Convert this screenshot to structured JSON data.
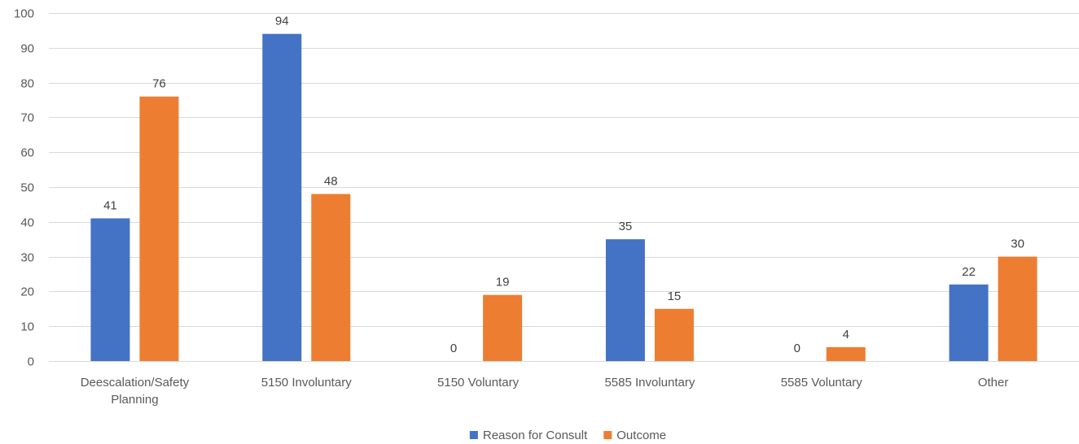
{
  "chart_data": {
    "type": "bar",
    "title": "",
    "xlabel": "",
    "ylabel": "",
    "categories": [
      [
        "Deescalation/Safety",
        "Planning"
      ],
      [
        "5150 Involuntary"
      ],
      [
        "5150 Voluntary"
      ],
      [
        "5585 Involuntary"
      ],
      [
        "5585 Voluntary"
      ],
      [
        "Other"
      ]
    ],
    "series": [
      {
        "name": "Reason for Consult",
        "color": "#4472c4",
        "values": [
          41,
          94,
          0,
          35,
          0,
          22
        ]
      },
      {
        "name": "Outcome",
        "color": "#ed7d31",
        "values": [
          76,
          48,
          19,
          15,
          4,
          30
        ]
      }
    ],
    "ylim": [
      0,
      100
    ],
    "yticks": [
      0,
      10,
      20,
      30,
      40,
      50,
      60,
      70,
      80,
      90,
      100
    ],
    "grid": true,
    "data_labels": true,
    "legend": "bottom-center"
  }
}
